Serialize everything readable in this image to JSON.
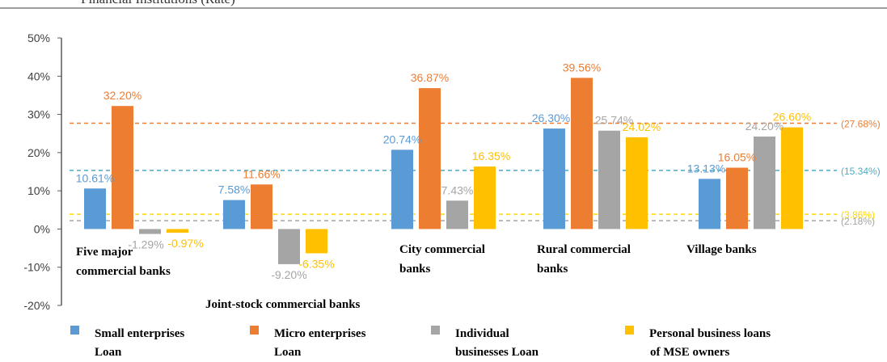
{
  "header_text": "Financial Institutions (Rate)",
  "chart_data": {
    "type": "bar",
    "ylim": [
      -20,
      50
    ],
    "y_ticks": [
      "50%",
      "40%",
      "30%",
      "20%",
      "10%",
      "0%",
      "-10%",
      "-20%"
    ],
    "y_tick_values": [
      50,
      40,
      30,
      20,
      10,
      0,
      -10,
      -20
    ],
    "categories": [
      "Five major commercial banks",
      "Joint-stock commercial banks",
      "City commercial banks",
      "Rural commercial banks",
      "Village banks"
    ],
    "category_label_lines": [
      [
        "Five major",
        "commercial banks"
      ],
      [
        "Joint-stock commercial banks"
      ],
      [
        "City commercial",
        "banks"
      ],
      [
        "Rural commercial",
        "banks"
      ],
      [
        "Village banks"
      ]
    ],
    "series": [
      {
        "name": "Small enterprises Loan",
        "name_lines": [
          "Small enterprises",
          "Loan"
        ],
        "color": "#5b9bd5",
        "values": [
          10.61,
          7.58,
          20.74,
          26.3,
          13.13
        ],
        "labels": [
          "10.61%",
          "7.58%",
          "20.74%",
          "26.30%",
          "13.13%"
        ]
      },
      {
        "name": "Micro enterprises Loan",
        "name_lines": [
          "Micro enterprises",
          "Loan"
        ],
        "color": "#ed7d31",
        "values": [
          32.2,
          11.66,
          36.87,
          39.56,
          16.05
        ],
        "labels": [
          "32.20%",
          "11.66%",
          "36.87%",
          "39.56%",
          "16.05%"
        ]
      },
      {
        "name": "Individual businesses Loan",
        "name_lines": [
          "Individual",
          "businesses Loan"
        ],
        "color": "#a5a5a5",
        "values": [
          -1.29,
          -9.2,
          7.43,
          25.74,
          24.2
        ],
        "labels": [
          "-1.29%",
          "-9.20%",
          "7.43%",
          "25.74%",
          "24.20%"
        ]
      },
      {
        "name": "Personal business loans of MSE owners",
        "name_lines": [
          "Personal business loans",
          "of MSE owners"
        ],
        "color": "#ffc000",
        "values": [
          -0.97,
          -6.35,
          16.35,
          24.02,
          26.6
        ],
        "labels": [
          "-0.97%",
          "-6.35%",
          "16.35%",
          "24.02%",
          "26.60%"
        ]
      }
    ],
    "reference_lines": [
      {
        "value": 27.68,
        "label": "(27.68%)",
        "color": "#ed7d31"
      },
      {
        "value": 15.34,
        "label": "(15.34%)",
        "color": "#4bacc6"
      },
      {
        "value": 3.86,
        "label": "(3.86%)",
        "color": "#ffd700"
      },
      {
        "value": 2.18,
        "label": "(2.18%)",
        "color": "#a5a5a5"
      }
    ],
    "grid": false,
    "legend_position": "bottom"
  }
}
